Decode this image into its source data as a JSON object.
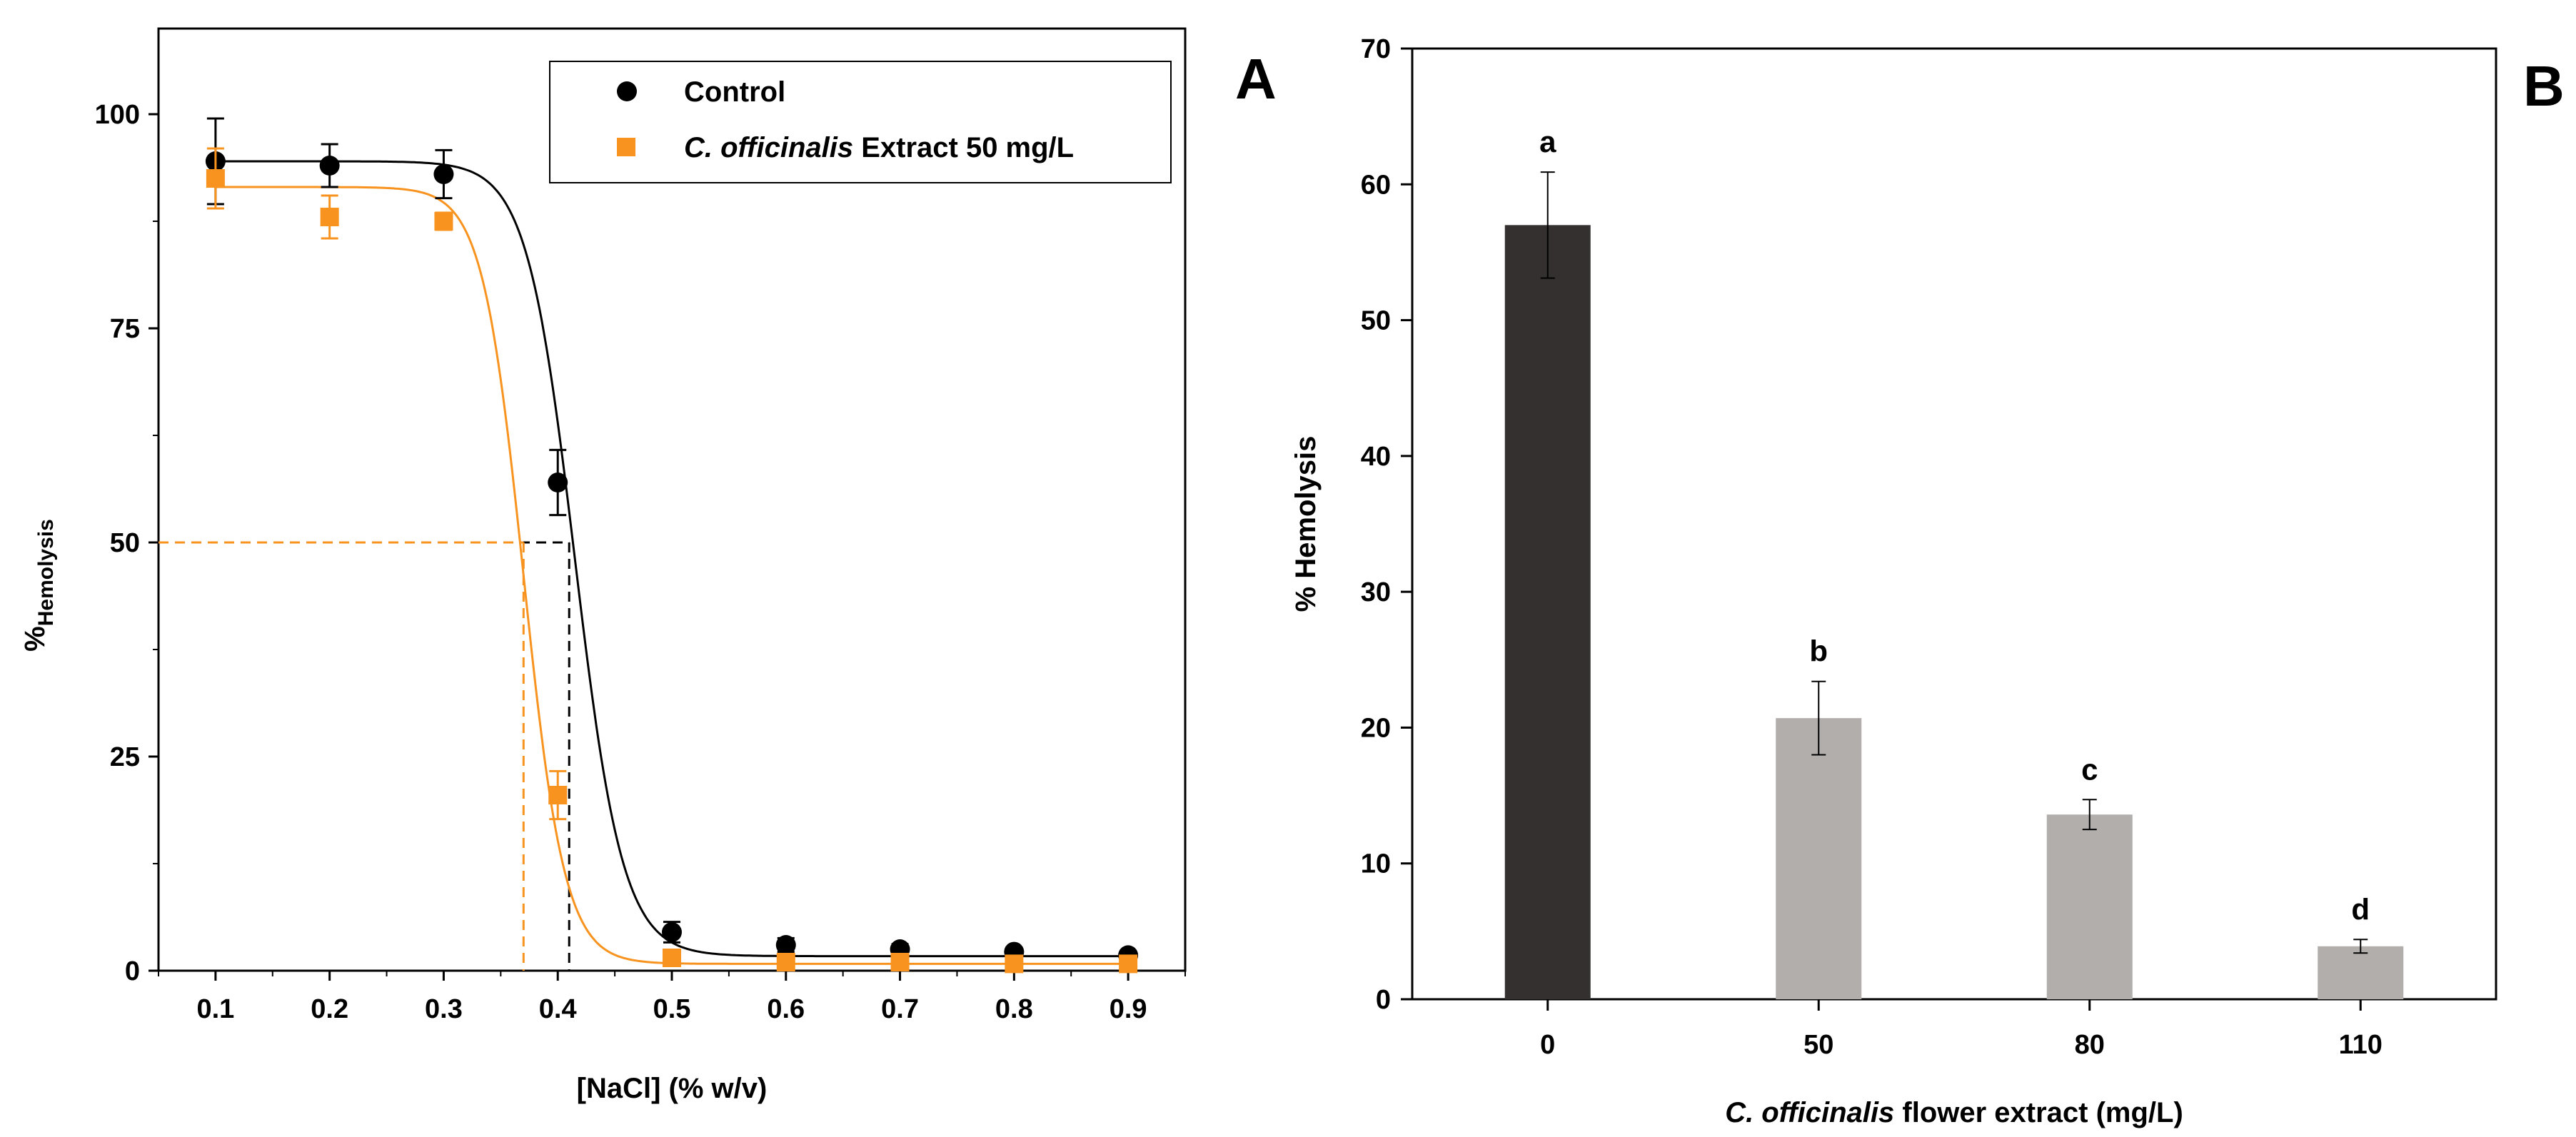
{
  "chart_data": [
    {
      "panel": "A",
      "type": "scatter",
      "xlabel": "[NaCl] (% w/v)",
      "ylabel_main": "%",
      "ylabel_sub": "Hemolysis",
      "xlim": [
        0.05,
        0.95
      ],
      "ylim": [
        0,
        110
      ],
      "xticks": [
        0.1,
        0.2,
        0.3,
        0.4,
        0.5,
        0.6,
        0.7,
        0.8,
        0.9
      ],
      "xtick_labels": [
        "0.1",
        "0.2",
        "0.3",
        "0.4",
        "0.5",
        "0.6",
        "0.7",
        "0.8",
        "0.9"
      ],
      "yticks": [
        0,
        25,
        50,
        75,
        100
      ],
      "ytick_labels": [
        "0",
        "25",
        "50",
        "75",
        "100"
      ],
      "legend_position": "top-right",
      "series": [
        {
          "name": "Control",
          "legend_italic": "",
          "legend_rest": "Control",
          "marker": "circle",
          "color": "#000000",
          "x": [
            0.1,
            0.2,
            0.3,
            0.4,
            0.5,
            0.6,
            0.7,
            0.8,
            0.9
          ],
          "y": [
            94.5,
            94.0,
            93.0,
            57.0,
            4.5,
            3.0,
            2.5,
            2.2,
            1.8
          ],
          "err": [
            5.0,
            2.5,
            2.8,
            3.8,
            1.2,
            0.8,
            0.6,
            0.5,
            0.5
          ],
          "fit": {
            "top": 94.5,
            "bottom": 1.7,
            "x50": 0.415,
            "slope": 0.021
          },
          "ec50": 0.41
        },
        {
          "name": "C. officinalis Extract 50 mg/L",
          "legend_italic": "C. officinalis",
          "legend_rest": " Extract 50 mg/L",
          "marker": "square",
          "color": "#f7931e",
          "x": [
            0.1,
            0.2,
            0.3,
            0.4,
            0.5,
            0.6,
            0.7,
            0.8,
            0.9
          ],
          "y": [
            92.5,
            88.0,
            87.5,
            20.5,
            1.5,
            1.0,
            1.0,
            0.8,
            0.8
          ],
          "err": [
            3.5,
            2.5,
            1.0,
            2.8,
            0.5,
            0.4,
            0.4,
            0.3,
            0.3
          ],
          "fit": {
            "top": 91.5,
            "bottom": 0.8,
            "x50": 0.37,
            "slope": 0.018
          },
          "ec50": 0.37
        }
      ],
      "reference_line_y": 50,
      "panel_letter": "A"
    },
    {
      "panel": "B",
      "type": "bar",
      "xlabel_italic": "C. officinalis",
      "xlabel_rest": " flower extract (mg/L)",
      "ylabel": "% Hemolysis",
      "ylim": [
        0,
        70
      ],
      "yticks": [
        0,
        10,
        20,
        30,
        40,
        50,
        60,
        70
      ],
      "ytick_labels": [
        "0",
        "10",
        "20",
        "30",
        "40",
        "50",
        "60",
        "70"
      ],
      "categories": [
        "0",
        "50",
        "80",
        "110"
      ],
      "values": [
        57.0,
        20.7,
        13.6,
        3.9
      ],
      "errors": [
        3.9,
        2.7,
        1.1,
        0.5
      ],
      "colors": [
        "#353030",
        "#b1aeac",
        "#b1aeac",
        "#b1aeac"
      ],
      "significance": [
        "a",
        "b",
        "c",
        "d"
      ],
      "panel_letter": "B"
    }
  ]
}
